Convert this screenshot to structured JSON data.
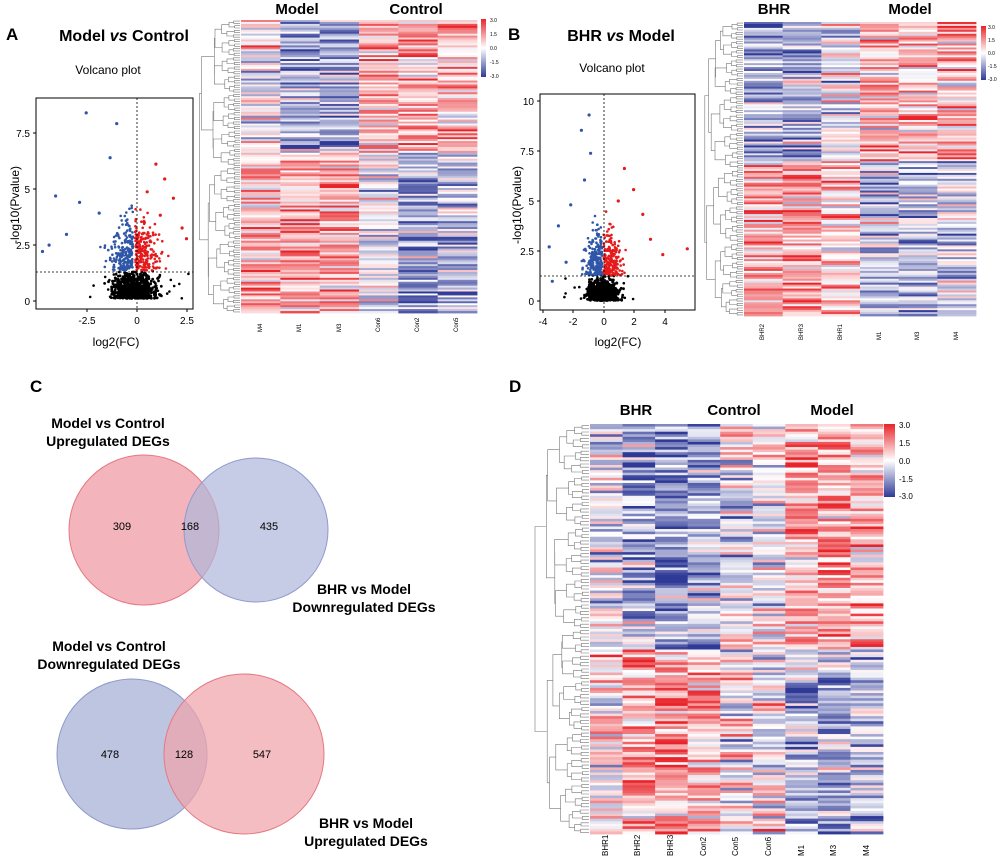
{
  "colors": {
    "up": "#e41a1c",
    "down": "#2e56a8",
    "ns": "#000000",
    "hi": "#e8242a",
    "lo": "#2f3a97",
    "mid": "#ffffff",
    "vennRed": "#f0a3aa",
    "vennBlue": "#aeb6da"
  },
  "panelA": {
    "label": "A",
    "title_left": "Model",
    "title_vs": "vs",
    "title_right": "Control",
    "subtitle": "Volcano plot",
    "xlabel": "log2(FC)",
    "ylabel": "-log10(Pvalue)",
    "xticks": [
      "-2.5",
      "0",
      "2.5"
    ],
    "yticks": [
      "0",
      "2.5",
      "5",
      "7.5"
    ],
    "heat_groups": [
      "Model",
      "Control"
    ],
    "samples": [
      "M4",
      "M1",
      "M3",
      "Con6",
      "Con2",
      "Con5"
    ],
    "scale": [
      "3.0",
      "1.5",
      "0.0",
      "-1.5",
      "-3.0"
    ]
  },
  "panelB": {
    "label": "B",
    "title_left": "BHR",
    "title_vs": "vs",
    "title_right": "Model",
    "subtitle": "Volcano plot",
    "xlabel": "log2(FC)",
    "ylabel": "-log10(Pvalue)",
    "xticks": [
      "-4",
      "-2",
      "0",
      "2",
      "4"
    ],
    "yticks": [
      "0",
      "2.5",
      "5",
      "7.5",
      "10"
    ],
    "heat_groups": [
      "BHR",
      "Model"
    ],
    "samples": [
      "BHR2",
      "BHR3",
      "BHR1",
      "M1",
      "M3",
      "M4"
    ],
    "scale": [
      "3.0",
      "1.5",
      "0.0",
      "-1.5",
      "-3.0"
    ]
  },
  "panelC": {
    "label": "C",
    "venn1": {
      "left_title": [
        "Model vs Control",
        "Upregulated DEGs"
      ],
      "right_title": [
        "BHR vs Model",
        "Downregulated DEGs"
      ],
      "left_only": "309",
      "overlap": "168",
      "right_only": "435"
    },
    "venn2": {
      "left_title": [
        "Model vs Control",
        "Downregulated DEGs"
      ],
      "right_title": [
        "BHR vs Model",
        "Upregulated DEGs"
      ],
      "left_only": "478",
      "overlap": "128",
      "right_only": "547"
    }
  },
  "panelD": {
    "label": "D",
    "groups": [
      "BHR",
      "Control",
      "Model"
    ],
    "samples": [
      "BHR1",
      "BHR2",
      "BHR3",
      "Con2",
      "Con5",
      "Con6",
      "M1",
      "M3",
      "M4"
    ],
    "scale": [
      "3.0",
      "1.5",
      "0.0",
      "-1.5",
      "-3.0"
    ]
  },
  "chart_data": [
    {
      "type": "scatter",
      "title": "Model vs Control — Volcano plot",
      "xlabel": "log2(FC)",
      "ylabel": "-log10(Pvalue)",
      "xlim": [
        -4.5,
        2.7
      ],
      "ylim": [
        -0.5,
        9.4
      ],
      "series": [
        {
          "name": "down",
          "points": [
            [
              -2.2,
              8.7
            ],
            [
              -0.8,
              8.2
            ],
            [
              -1.1,
              6.6
            ],
            [
              -3.6,
              4.8
            ],
            [
              -2.5,
              4.5
            ],
            [
              -1.6,
              4.0
            ],
            [
              -3.1,
              3.0
            ],
            [
              -3.9,
              2.5
            ],
            [
              -4.2,
              2.2
            ]
          ]
        },
        {
          "name": "up",
          "points": [
            [
              1.0,
              6.3
            ],
            [
              1.4,
              5.6
            ],
            [
              1.8,
              4.7
            ],
            [
              2.2,
              3.3
            ],
            [
              2.4,
              2.8
            ],
            [
              1.2,
              3.9
            ],
            [
              0.6,
              5.0
            ]
          ]
        }
      ],
      "threshold": {
        "x": 0,
        "y": 1.3
      }
    },
    {
      "type": "scatter",
      "title": "BHR vs Model — Volcano plot",
      "xlabel": "log2(FC)",
      "ylabel": "-log10(Pvalue)",
      "xlim": [
        -4.1,
        6.0
      ],
      "ylim": [
        -0.5,
        10.8
      ],
      "series": [
        {
          "name": "down",
          "points": [
            [
              -0.9,
              9.7
            ],
            [
              -1.4,
              8.9
            ],
            [
              -0.8,
              7.7
            ],
            [
              -1.2,
              6.3
            ],
            [
              -2.1,
              5.0
            ],
            [
              -2.9,
              3.9
            ],
            [
              -3.5,
              2.8
            ],
            [
              -2.4,
              2.0
            ],
            [
              -3.3,
              1.0
            ]
          ]
        },
        {
          "name": "up",
          "points": [
            [
              1.4,
              6.9
            ],
            [
              2.0,
              5.8
            ],
            [
              2.6,
              4.5
            ],
            [
              3.1,
              3.2
            ],
            [
              3.9,
              2.4
            ],
            [
              5.5,
              2.7
            ],
            [
              1.0,
              5.2
            ]
          ]
        }
      ],
      "threshold": {
        "x": 0,
        "y": 1.3
      }
    },
    {
      "type": "heatmap",
      "title": "Model vs Control",
      "columns": [
        "M4",
        "M1",
        "M3",
        "Con6",
        "Con2",
        "Con5"
      ],
      "groups": [
        "Model",
        "Control"
      ],
      "range": [
        -3,
        3
      ]
    },
    {
      "type": "heatmap",
      "title": "BHR vs Model",
      "columns": [
        "BHR2",
        "BHR3",
        "BHR1",
        "M1",
        "M3",
        "M4"
      ],
      "groups": [
        "BHR",
        "Model"
      ],
      "range": [
        -3,
        3
      ]
    },
    {
      "type": "heatmap",
      "title": "BHR, Control, Model",
      "columns": [
        "BHR1",
        "BHR2",
        "BHR3",
        "Con2",
        "Con5",
        "Con6",
        "M1",
        "M3",
        "M4"
      ],
      "groups": [
        "BHR",
        "Control",
        "Model"
      ],
      "range": [
        -3,
        3
      ]
    }
  ]
}
